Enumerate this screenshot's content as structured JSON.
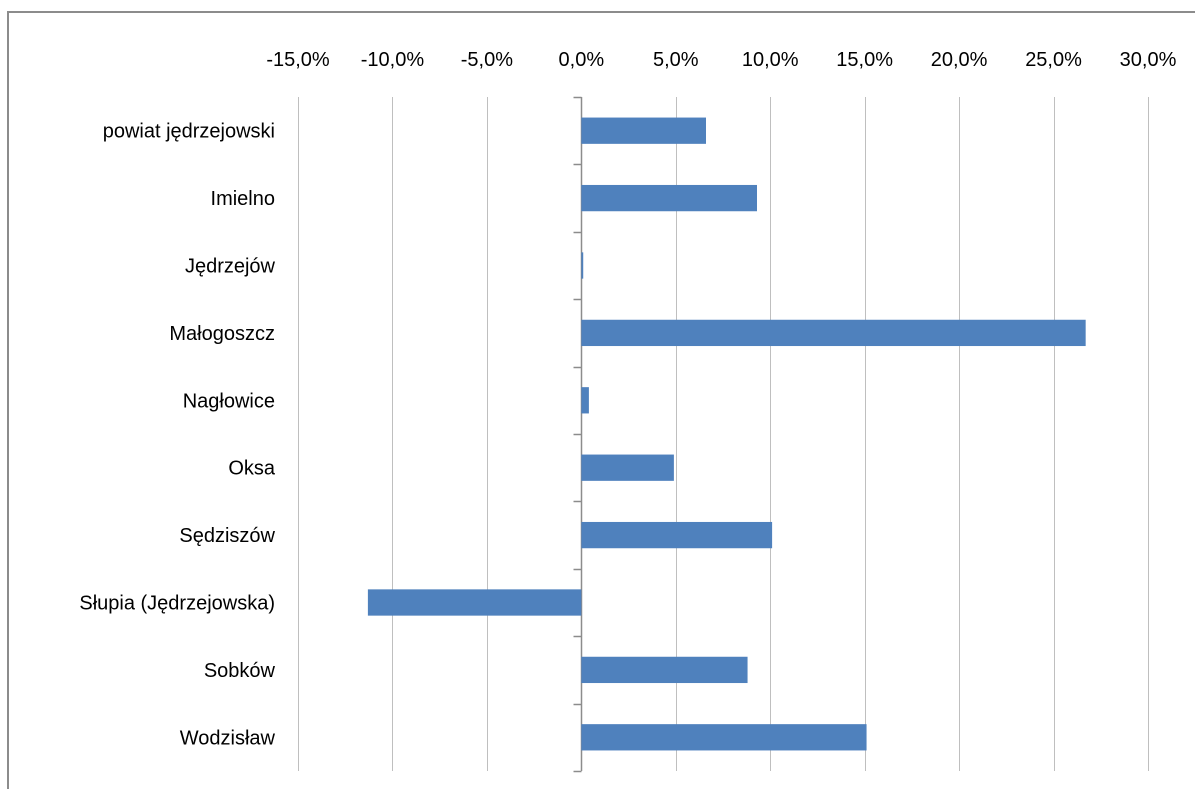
{
  "chart_data": {
    "type": "bar",
    "orientation": "horizontal",
    "title": "",
    "xlabel": "",
    "ylabel": "",
    "xlim": [
      -15,
      30
    ],
    "x_ticks": [
      -15,
      -10,
      -5,
      0,
      5,
      10,
      15,
      20,
      25,
      30
    ],
    "x_tick_labels": [
      "-15,0%",
      "-10,0%",
      "-5,0%",
      "0,0%",
      "5,0%",
      "10,0%",
      "15,0%",
      "20,0%",
      "25,0%",
      "30,0%"
    ],
    "x_axis_position": "top",
    "grid": "vertical",
    "legend": "none",
    "categories": [
      "powiat jędrzejowski",
      "Imielno",
      "Jędrzejów",
      "Małogoszcz",
      "Nagłowice",
      "Oksa",
      "Sędziszów",
      "Słupia (Jędrzejowska)",
      "Sobków",
      "Wodzisław"
    ],
    "values": [
      6.6,
      9.3,
      0.1,
      26.7,
      0.4,
      4.9,
      10.1,
      -11.3,
      8.8,
      15.1
    ],
    "unit": "%",
    "colors": {
      "bar": "#4f81bd",
      "grid": "#bfbfbf",
      "axis": "#8c8c8c",
      "frame": "#8c8c8c"
    }
  }
}
